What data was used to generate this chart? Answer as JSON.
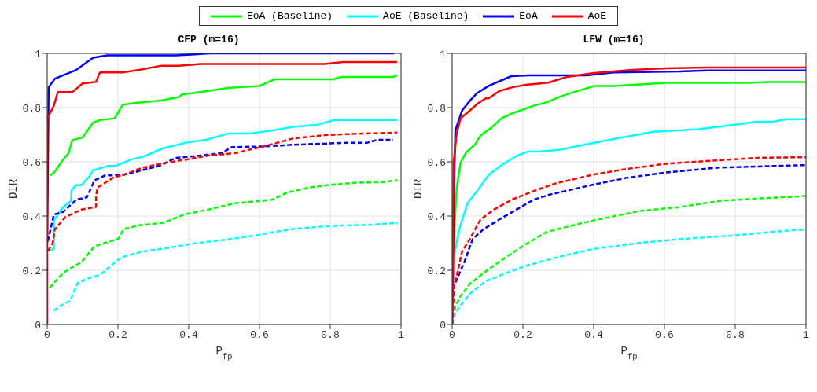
{
  "chart_data": [
    {
      "type": "line",
      "title": "CFP (m=16)",
      "xlabel": "P$_{fp}$",
      "ylabel": "DIR",
      "xlim": [
        0,
        1
      ],
      "ylim": [
        0,
        1
      ],
      "xticks": [
        0,
        0.2,
        0.4,
        0.6,
        0.8,
        1
      ],
      "yticks": [
        0,
        0.2,
        0.4,
        0.6,
        0.8,
        1
      ],
      "grid": true,
      "legend": "top",
      "marker": "none",
      "series": [
        {
          "name": "EoA (Baseline)",
          "color": "#00ff00",
          "line_style": "solid",
          "x": [
            0.007,
            0.019,
            0.052,
            0.06,
            0.071,
            0.1,
            0.13,
            0.149,
            0.19,
            0.213,
            0.246,
            0.321,
            0.373,
            0.38,
            0.44,
            0.515,
            0.6,
            0.642,
            0.806,
            0.832,
            0.978,
            0.989
          ],
          "values": [
            0.55,
            0.56,
            0.62,
            0.63,
            0.68,
            0.69,
            0.745,
            0.754,
            0.76,
            0.81,
            0.817,
            0.826,
            0.839,
            0.848,
            0.859,
            0.873,
            0.88,
            0.904,
            0.904,
            0.913,
            0.913,
            0.92
          ]
        },
        {
          "name": "AoE (Baseline)",
          "color": "#00ffff",
          "line_style": "solid",
          "x": [
            0.004,
            0.019,
            0.019,
            0.045,
            0.067,
            0.069,
            0.082,
            0.097,
            0.119,
            0.13,
            0.172,
            0.194,
            0.239,
            0.269,
            0.328,
            0.396,
            0.448,
            0.511,
            0.571,
            0.634,
            0.694,
            0.761,
            0.81,
            0.989
          ],
          "values": [
            0.27,
            0.28,
            0.384,
            0.433,
            0.456,
            0.496,
            0.514,
            0.514,
            0.546,
            0.569,
            0.585,
            0.585,
            0.609,
            0.618,
            0.65,
            0.672,
            0.681,
            0.704,
            0.704,
            0.715,
            0.729,
            0.736,
            0.754,
            0.754
          ]
        },
        {
          "name": "EoA",
          "color": "#0000ff",
          "line_style": "solid",
          "x": [
            0,
            0.004,
            0.022,
            0.082,
            0.13,
            0.17,
            0.366,
            0.46,
            0.98
          ],
          "values": [
            0.3,
            0.875,
            0.907,
            0.939,
            0.984,
            0.993,
            0.993,
            1,
            1
          ]
        },
        {
          "name": "AoE",
          "color": "#ff0000",
          "line_style": "solid",
          "x": [
            0,
            0,
            0.019,
            0.03,
            0.071,
            0.1,
            0.138,
            0.149,
            0.213,
            0.26,
            0.32,
            0.373,
            0.433,
            0.784,
            0.836,
            0.989
          ],
          "values": [
            0,
            0.758,
            0.808,
            0.857,
            0.857,
            0.889,
            0.895,
            0.93,
            0.93,
            0.939,
            0.954,
            0.954,
            0.961,
            0.961,
            0.968,
            0.968
          ]
        },
        {
          "color": "#00ff00",
          "line_style": "dashed",
          "x": [
            0.007,
            0.022,
            0.045,
            0.067,
            0.097,
            0.134,
            0.201,
            0.216,
            0.261,
            0.328,
            0.388,
            0.455,
            0.53,
            0.634,
            0.679,
            0.739,
            0.806,
            0.873,
            0.948,
            0.989
          ],
          "values": [
            0.135,
            0.158,
            0.19,
            0.208,
            0.23,
            0.289,
            0.316,
            0.352,
            0.366,
            0.375,
            0.406,
            0.424,
            0.447,
            0.46,
            0.487,
            0.505,
            0.516,
            0.523,
            0.525,
            0.532
          ]
        },
        {
          "color": "#00ffff",
          "line_style": "dashed",
          "x": [
            0.019,
            0.03,
            0.067,
            0.071,
            0.086,
            0.127,
            0.149,
            0.172,
            0.209,
            0.269,
            0.328,
            0.41,
            0.507,
            0.59,
            0.694,
            0.806,
            0.918,
            0.989
          ],
          "values": [
            0.05,
            0.063,
            0.09,
            0.108,
            0.153,
            0.176,
            0.182,
            0.208,
            0.248,
            0.269,
            0.28,
            0.298,
            0.313,
            0.329,
            0.352,
            0.364,
            0.368,
            0.375
          ]
        },
        {
          "color": "#0000ff",
          "line_style": "dashed",
          "x": [
            0.002,
            0.019,
            0.045,
            0.082,
            0.112,
            0.134,
            0.164,
            0.209,
            0.269,
            0.321,
            0.362,
            0.433,
            0.493,
            0.522,
            0.619,
            0.694,
            0.843,
            0.903,
            0.933,
            0.978
          ],
          "values": [
            0.307,
            0.406,
            0.415,
            0.46,
            0.469,
            0.532,
            0.55,
            0.55,
            0.569,
            0.587,
            0.614,
            0.623,
            0.632,
            0.654,
            0.657,
            0.663,
            0.67,
            0.67,
            0.681,
            0.681
          ]
        },
        {
          "color": "#ff0000",
          "line_style": "dashed",
          "x": [
            0.002,
            0.015,
            0.022,
            0.052,
            0.097,
            0.138,
            0.138,
            0.142,
            0.187,
            0.216,
            0.269,
            0.336,
            0.396,
            0.455,
            0.53,
            0.619,
            0.694,
            0.791,
            0.843,
            0.989
          ],
          "values": [
            0.271,
            0.298,
            0.352,
            0.397,
            0.424,
            0.433,
            0.469,
            0.505,
            0.542,
            0.552,
            0.578,
            0.597,
            0.609,
            0.623,
            0.632,
            0.659,
            0.686,
            0.699,
            0.702,
            0.708
          ]
        }
      ]
    },
    {
      "type": "line",
      "title": "LFW (m=16)",
      "xlabel": "P$_{fp}$",
      "ylabel": "DIR",
      "xlim": [
        0,
        1
      ],
      "ylim": [
        0,
        1
      ],
      "xticks": [
        0,
        0.2,
        0.4,
        0.6,
        0.8,
        1
      ],
      "yticks": [
        0,
        0.2,
        0.4,
        0.6,
        0.8,
        1
      ],
      "grid": true,
      "marker": "none",
      "series": [
        {
          "color": "#00ff00",
          "line_style": "solid",
          "x": [
            0,
            0.005,
            0.013,
            0.024,
            0.039,
            0.065,
            0.08,
            0.11,
            0.14,
            0.17,
            0.23,
            0.268,
            0.306,
            0.343,
            0.403,
            0.456,
            0.606,
            0.831,
            0.891,
            1
          ],
          "values": [
            0,
            0.324,
            0.506,
            0.597,
            0.634,
            0.665,
            0.697,
            0.725,
            0.761,
            0.779,
            0.807,
            0.82,
            0.841,
            0.857,
            0.88,
            0.88,
            0.891,
            0.891,
            0.894,
            0.894
          ]
        },
        {
          "color": "#00ffff",
          "line_style": "solid",
          "x": [
            0,
            0.005,
            0.02,
            0.043,
            0.073,
            0.103,
            0.14,
            0.185,
            0.215,
            0.245,
            0.306,
            0.381,
            0.456,
            0.568,
            0.696,
            0.794,
            0.861,
            0.906,
            0.944,
            1
          ],
          "values": [
            0,
            0.251,
            0.351,
            0.447,
            0.497,
            0.552,
            0.588,
            0.624,
            0.638,
            0.638,
            0.645,
            0.665,
            0.684,
            0.711,
            0.72,
            0.736,
            0.748,
            0.748,
            0.757,
            0.757
          ]
        },
        {
          "color": "#0000ff",
          "line_style": "solid",
          "x": [
            0,
            0.005,
            0.009,
            0.028,
            0.05,
            0.069,
            0.103,
            0.167,
            0.215,
            0.381,
            0.456,
            0.643,
            0.718,
            1
          ],
          "values": [
            0,
            0.469,
            0.716,
            0.789,
            0.825,
            0.852,
            0.88,
            0.916,
            0.919,
            0.919,
            0.93,
            0.933,
            0.937,
            0.937
          ]
        },
        {
          "color": "#ff0000",
          "line_style": "solid",
          "x": [
            0,
            0.004,
            0.013,
            0.024,
            0.05,
            0.073,
            0.095,
            0.103,
            0.133,
            0.17,
            0.208,
            0.272,
            0.321,
            0.396,
            0.508,
            0.606,
            0.718,
            1
          ],
          "values": [
            0,
            0.597,
            0.706,
            0.761,
            0.789,
            0.816,
            0.834,
            0.834,
            0.861,
            0.875,
            0.884,
            0.892,
            0.912,
            0.927,
            0.939,
            0.945,
            0.948,
            0.948
          ]
        },
        {
          "color": "#00ff00",
          "line_style": "dashed",
          "x": [
            0,
            0.009,
            0.024,
            0.05,
            0.095,
            0.155,
            0.208,
            0.268,
            0.396,
            0.531,
            0.643,
            0.756,
            0.869,
            1
          ],
          "values": [
            0,
            0.068,
            0.105,
            0.15,
            0.196,
            0.251,
            0.296,
            0.342,
            0.383,
            0.419,
            0.433,
            0.456,
            0.465,
            0.474
          ]
        },
        {
          "color": "#00ffff",
          "line_style": "dashed",
          "x": [
            0,
            0.005,
            0.02,
            0.05,
            0.095,
            0.155,
            0.215,
            0.306,
            0.396,
            0.531,
            0.643,
            0.794,
            0.906,
            1
          ],
          "values": [
            0,
            0.032,
            0.064,
            0.114,
            0.16,
            0.191,
            0.219,
            0.251,
            0.278,
            0.301,
            0.315,
            0.328,
            0.342,
            0.351
          ]
        },
        {
          "color": "#0000ff",
          "line_style": "dashed",
          "x": [
            0,
            0.005,
            0.017,
            0.035,
            0.058,
            0.088,
            0.133,
            0.17,
            0.23,
            0.275,
            0.396,
            0.493,
            0.606,
            0.756,
            1
          ],
          "values": [
            0,
            0.141,
            0.178,
            0.232,
            0.315,
            0.351,
            0.387,
            0.415,
            0.46,
            0.479,
            0.515,
            0.541,
            0.561,
            0.579,
            0.588
          ]
        },
        {
          "color": "#ff0000",
          "line_style": "dashed",
          "x": [
            0,
            0.005,
            0.013,
            0.028,
            0.05,
            0.08,
            0.118,
            0.17,
            0.23,
            0.291,
            0.396,
            0.493,
            0.606,
            0.756,
            0.869,
            1
          ],
          "values": [
            0,
            0.141,
            0.178,
            0.269,
            0.315,
            0.387,
            0.424,
            0.461,
            0.492,
            0.52,
            0.552,
            0.574,
            0.593,
            0.606,
            0.615,
            0.617
          ]
        }
      ]
    }
  ]
}
